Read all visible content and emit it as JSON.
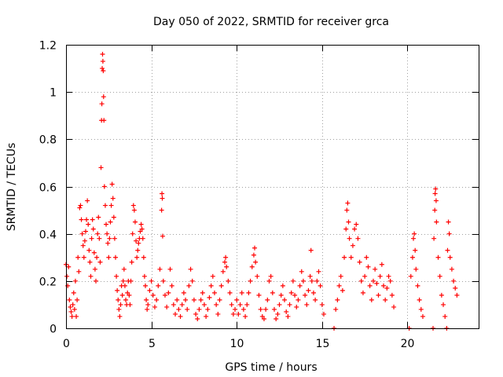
{
  "chart_data": {
    "type": "scatter",
    "title": "Day 050 of 2022, SRMTID for receiver grca",
    "xlabel": "GPS time / hours",
    "ylabel": "SRMTID / TECUs",
    "xlim": [
      0,
      24.17
    ],
    "ylim": [
      0,
      1.2
    ],
    "x_ticks": [
      0,
      5,
      10,
      15,
      20
    ],
    "x_tick_labels": [
      "0",
      "5",
      "10",
      "15",
      "20"
    ],
    "y_ticks": [
      0,
      0.2,
      0.4,
      0.6,
      0.8,
      1.0,
      1.2
    ],
    "y_tick_labels": [
      "0",
      "0.2",
      "0.4",
      "0.6",
      "0.8",
      "1",
      "1.2"
    ],
    "grid": true,
    "marker": "plus",
    "color": "#ff0000",
    "series": [
      {
        "name": "SRMTID",
        "points": [
          [
            0.0,
            0.27
          ],
          [
            0.05,
            0.22
          ],
          [
            0.1,
            0.18
          ],
          [
            0.15,
            0.26
          ],
          [
            0.2,
            0.12
          ],
          [
            0.25,
            0.09
          ],
          [
            0.3,
            0.07
          ],
          [
            0.35,
            0.05
          ],
          [
            0.4,
            0.1
          ],
          [
            0.45,
            0.15
          ],
          [
            0.5,
            0.08
          ],
          [
            0.55,
            0.2
          ],
          [
            0.6,
            0.05
          ],
          [
            0.65,
            0.12
          ],
          [
            0.7,
            0.3
          ],
          [
            0.75,
            0.24
          ],
          [
            0.8,
            0.51
          ],
          [
            0.85,
            0.52
          ],
          [
            0.9,
            0.46
          ],
          [
            0.95,
            0.4
          ],
          [
            1.0,
            0.35
          ],
          [
            1.05,
            0.3
          ],
          [
            1.1,
            0.37
          ],
          [
            1.15,
            0.41
          ],
          [
            1.2,
            0.46
          ],
          [
            1.25,
            0.54
          ],
          [
            1.3,
            0.44
          ],
          [
            1.35,
            0.33
          ],
          [
            1.4,
            0.28
          ],
          [
            1.45,
            0.22
          ],
          [
            1.5,
            0.38
          ],
          [
            1.55,
            0.46
          ],
          [
            1.6,
            0.42
          ],
          [
            1.65,
            0.32
          ],
          [
            1.7,
            0.25
          ],
          [
            1.75,
            0.2
          ],
          [
            1.8,
            0.3
          ],
          [
            1.85,
            0.4
          ],
          [
            1.9,
            0.47
          ],
          [
            1.95,
            0.38
          ],
          [
            2.0,
            0.28
          ],
          [
            2.05,
            0.68
          ],
          [
            2.08,
            0.88
          ],
          [
            2.1,
            0.95
          ],
          [
            2.12,
            1.1
          ],
          [
            2.14,
            1.16
          ],
          [
            2.16,
            1.13
          ],
          [
            2.18,
            1.09
          ],
          [
            2.2,
            0.98
          ],
          [
            2.22,
            0.88
          ],
          [
            2.25,
            0.6
          ],
          [
            2.3,
            0.52
          ],
          [
            2.35,
            0.44
          ],
          [
            2.4,
            0.4
          ],
          [
            2.45,
            0.36
          ],
          [
            2.5,
            0.3
          ],
          [
            2.55,
            0.38
          ],
          [
            2.6,
            0.45
          ],
          [
            2.65,
            0.52
          ],
          [
            2.7,
            0.61
          ],
          [
            2.75,
            0.55
          ],
          [
            2.8,
            0.47
          ],
          [
            2.85,
            0.38
          ],
          [
            2.9,
            0.3
          ],
          [
            2.95,
            0.22
          ],
          [
            3.0,
            0.16
          ],
          [
            3.05,
            0.12
          ],
          [
            3.1,
            0.08
          ],
          [
            3.15,
            0.05
          ],
          [
            3.2,
            0.1
          ],
          [
            3.25,
            0.18
          ],
          [
            3.3,
            0.14
          ],
          [
            3.35,
            0.2
          ],
          [
            3.4,
            0.25
          ],
          [
            3.45,
            0.18
          ],
          [
            3.5,
            0.12
          ],
          [
            3.55,
            0.1
          ],
          [
            3.6,
            0.15
          ],
          [
            3.65,
            0.2
          ],
          [
            3.7,
            0.14
          ],
          [
            3.75,
            0.1
          ],
          [
            3.8,
            0.2
          ],
          [
            3.85,
            0.28
          ],
          [
            3.9,
            0.4
          ],
          [
            3.95,
            0.52
          ],
          [
            4.0,
            0.5
          ],
          [
            4.05,
            0.45
          ],
          [
            4.1,
            0.37
          ],
          [
            4.15,
            0.3
          ],
          [
            4.2,
            0.33
          ],
          [
            4.25,
            0.36
          ],
          [
            4.3,
            0.38
          ],
          [
            4.35,
            0.41
          ],
          [
            4.4,
            0.44
          ],
          [
            4.45,
            0.42
          ],
          [
            4.5,
            0.38
          ],
          [
            4.55,
            0.3
          ],
          [
            4.6,
            0.22
          ],
          [
            4.65,
            0.18
          ],
          [
            4.7,
            0.12
          ],
          [
            4.75,
            0.08
          ],
          [
            4.8,
            0.1
          ],
          [
            4.9,
            0.16
          ],
          [
            5.0,
            0.2
          ],
          [
            5.1,
            0.14
          ],
          [
            5.2,
            0.09
          ],
          [
            5.3,
            0.12
          ],
          [
            5.4,
            0.18
          ],
          [
            5.5,
            0.25
          ],
          [
            5.6,
            0.5
          ],
          [
            5.62,
            0.57
          ],
          [
            5.64,
            0.55
          ],
          [
            5.66,
            0.39
          ],
          [
            5.7,
            0.2
          ],
          [
            5.8,
            0.14
          ],
          [
            5.9,
            0.09
          ],
          [
            6.0,
            0.15
          ],
          [
            6.1,
            0.25
          ],
          [
            6.2,
            0.18
          ],
          [
            6.3,
            0.1
          ],
          [
            6.4,
            0.06
          ],
          [
            6.5,
            0.12
          ],
          [
            6.6,
            0.08
          ],
          [
            6.7,
            0.05
          ],
          [
            6.8,
            0.1
          ],
          [
            6.9,
            0.15
          ],
          [
            7.0,
            0.12
          ],
          [
            7.1,
            0.08
          ],
          [
            7.2,
            0.18
          ],
          [
            7.3,
            0.25
          ],
          [
            7.4,
            0.2
          ],
          [
            7.5,
            0.12
          ],
          [
            7.6,
            0.06
          ],
          [
            7.7,
            0.04
          ],
          [
            7.8,
            0.08
          ],
          [
            7.9,
            0.12
          ],
          [
            8.0,
            0.15
          ],
          [
            8.1,
            0.1
          ],
          [
            8.2,
            0.05
          ],
          [
            8.3,
            0.08
          ],
          [
            8.4,
            0.13
          ],
          [
            8.5,
            0.18
          ],
          [
            8.6,
            0.22
          ],
          [
            8.7,
            0.15
          ],
          [
            8.8,
            0.1
          ],
          [
            8.9,
            0.06
          ],
          [
            9.0,
            0.12
          ],
          [
            9.1,
            0.18
          ],
          [
            9.2,
            0.24
          ],
          [
            9.3,
            0.28
          ],
          [
            9.35,
            0.3
          ],
          [
            9.4,
            0.26
          ],
          [
            9.5,
            0.2
          ],
          [
            9.6,
            0.15
          ],
          [
            9.7,
            0.1
          ],
          [
            9.8,
            0.06
          ],
          [
            9.9,
            0.08
          ],
          [
            10.0,
            0.12
          ],
          [
            10.1,
            0.06
          ],
          [
            10.2,
            0.1
          ],
          [
            10.3,
            0.15
          ],
          [
            10.4,
            0.08
          ],
          [
            10.5,
            0.05
          ],
          [
            10.6,
            0.1
          ],
          [
            10.7,
            0.15
          ],
          [
            10.8,
            0.2
          ],
          [
            10.9,
            0.26
          ],
          [
            11.0,
            0.31
          ],
          [
            11.05,
            0.34
          ],
          [
            11.1,
            0.28
          ],
          [
            11.2,
            0.22
          ],
          [
            11.3,
            0.14
          ],
          [
            11.4,
            0.08
          ],
          [
            11.5,
            0.05
          ],
          [
            11.6,
            0.04
          ],
          [
            11.7,
            0.08
          ],
          [
            11.8,
            0.12
          ],
          [
            11.9,
            0.2
          ],
          [
            12.0,
            0.22
          ],
          [
            12.1,
            0.15
          ],
          [
            12.2,
            0.08
          ],
          [
            12.3,
            0.04
          ],
          [
            12.4,
            0.06
          ],
          [
            12.5,
            0.1
          ],
          [
            12.6,
            0.14
          ],
          [
            12.7,
            0.18
          ],
          [
            12.8,
            0.12
          ],
          [
            12.9,
            0.07
          ],
          [
            13.0,
            0.05
          ],
          [
            13.1,
            0.1
          ],
          [
            13.2,
            0.15
          ],
          [
            13.3,
            0.2
          ],
          [
            13.4,
            0.14
          ],
          [
            13.5,
            0.09
          ],
          [
            13.6,
            0.12
          ],
          [
            13.7,
            0.18
          ],
          [
            13.8,
            0.24
          ],
          [
            13.9,
            0.2
          ],
          [
            14.0,
            0.14
          ],
          [
            14.1,
            0.1
          ],
          [
            14.2,
            0.16
          ],
          [
            14.3,
            0.22
          ],
          [
            14.35,
            0.33
          ],
          [
            14.4,
            0.2
          ],
          [
            14.5,
            0.15
          ],
          [
            14.6,
            0.12
          ],
          [
            14.7,
            0.2
          ],
          [
            14.8,
            0.24
          ],
          [
            14.9,
            0.18
          ],
          [
            15.0,
            0.1
          ],
          [
            15.1,
            0.06
          ],
          [
            15.7,
            0.0
          ],
          [
            15.8,
            0.08
          ],
          [
            15.9,
            0.12
          ],
          [
            16.0,
            0.18
          ],
          [
            16.1,
            0.22
          ],
          [
            16.2,
            0.16
          ],
          [
            16.3,
            0.3
          ],
          [
            16.4,
            0.42
          ],
          [
            16.45,
            0.5
          ],
          [
            16.5,
            0.53
          ],
          [
            16.55,
            0.45
          ],
          [
            16.6,
            0.38
          ],
          [
            16.7,
            0.3
          ],
          [
            16.8,
            0.35
          ],
          [
            16.9,
            0.42
          ],
          [
            17.0,
            0.44
          ],
          [
            17.1,
            0.38
          ],
          [
            17.2,
            0.28
          ],
          [
            17.3,
            0.2
          ],
          [
            17.4,
            0.15
          ],
          [
            17.5,
            0.22
          ],
          [
            17.6,
            0.3
          ],
          [
            17.7,
            0.26
          ],
          [
            17.8,
            0.18
          ],
          [
            17.9,
            0.12
          ],
          [
            18.0,
            0.2
          ],
          [
            18.1,
            0.25
          ],
          [
            18.2,
            0.19
          ],
          [
            18.3,
            0.14
          ],
          [
            18.4,
            0.22
          ],
          [
            18.5,
            0.27
          ],
          [
            18.6,
            0.18
          ],
          [
            18.7,
            0.12
          ],
          [
            18.8,
            0.17
          ],
          [
            18.9,
            0.22
          ],
          [
            19.0,
            0.2
          ],
          [
            19.1,
            0.14
          ],
          [
            19.2,
            0.09
          ],
          [
            20.1,
            0.0
          ],
          [
            20.2,
            0.22
          ],
          [
            20.3,
            0.3
          ],
          [
            20.35,
            0.38
          ],
          [
            20.4,
            0.4
          ],
          [
            20.45,
            0.33
          ],
          [
            20.5,
            0.25
          ],
          [
            20.6,
            0.18
          ],
          [
            20.7,
            0.12
          ],
          [
            20.8,
            0.08
          ],
          [
            20.9,
            0.05
          ],
          [
            21.5,
            0.0
          ],
          [
            21.55,
            0.38
          ],
          [
            21.6,
            0.5
          ],
          [
            21.62,
            0.57
          ],
          [
            21.65,
            0.59
          ],
          [
            21.68,
            0.54
          ],
          [
            21.7,
            0.45
          ],
          [
            21.8,
            0.3
          ],
          [
            21.9,
            0.22
          ],
          [
            22.0,
            0.14
          ],
          [
            22.1,
            0.1
          ],
          [
            22.2,
            0.05
          ],
          [
            22.3,
            0.0
          ],
          [
            22.35,
            0.33
          ],
          [
            22.4,
            0.45
          ],
          [
            22.45,
            0.4
          ],
          [
            22.5,
            0.3
          ],
          [
            22.6,
            0.25
          ],
          [
            22.7,
            0.2
          ],
          [
            22.8,
            0.17
          ],
          [
            22.9,
            0.14
          ]
        ]
      }
    ]
  }
}
